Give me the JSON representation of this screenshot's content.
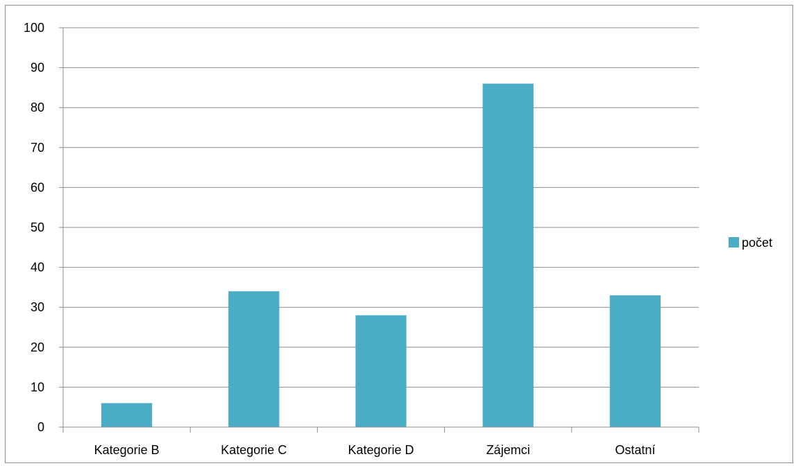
{
  "chart_data": {
    "type": "bar",
    "categories": [
      "Kategorie B",
      "Kategorie C",
      "Kategorie D",
      "Zájemci",
      "Ostatní"
    ],
    "series": [
      {
        "name": "počet",
        "values": [
          6,
          34,
          28,
          86,
          33
        ],
        "color": "#4BACC6"
      }
    ],
    "yticks": [
      "0",
      "10",
      "20",
      "30",
      "40",
      "50",
      "60",
      "70",
      "80",
      "90",
      "100"
    ],
    "ylim": [
      0,
      100
    ],
    "grid": true,
    "legend_position": "right"
  }
}
